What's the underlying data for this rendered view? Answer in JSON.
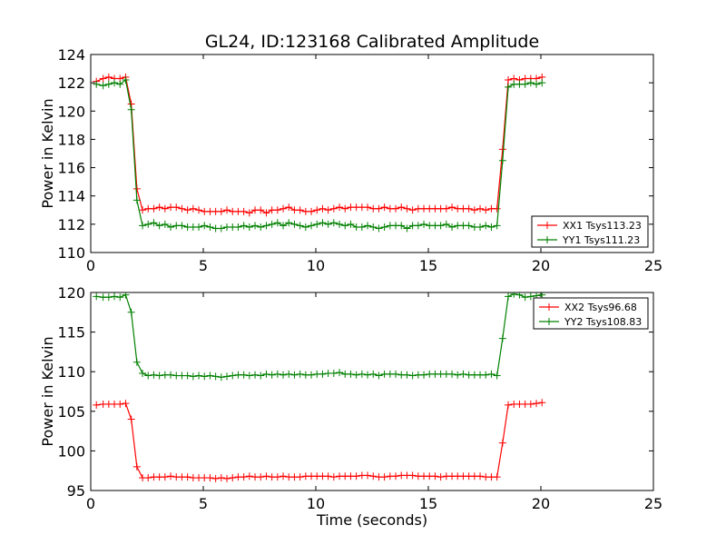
{
  "chart_data": {
    "type": "line",
    "title": "GL24, ID:123168 Calibrated Amplitude",
    "xlabel": "Time (seconds)",
    "panels": [
      {
        "id": "top",
        "ylabel": "Power in Kelvin",
        "xlim": [
          0,
          25
        ],
        "ylim": [
          110,
          124
        ],
        "xticks": [
          0,
          5,
          10,
          15,
          20,
          25
        ],
        "yticks": [
          110,
          112,
          114,
          116,
          118,
          120,
          122,
          124
        ],
        "legend_position": "lower-right",
        "series": [
          {
            "name": "XX1 Tsys113.23",
            "color": "#ff0000",
            "x": [
              0.25,
              0.55,
              0.8,
              1.05,
              1.3,
              1.55,
              1.8,
              2.05,
              2.3,
              2.55,
              2.8,
              3.05,
              3.3,
              3.55,
              3.8,
              4.05,
              4.3,
              4.55,
              4.8,
              5.05,
              5.3,
              5.55,
              5.8,
              6.05,
              6.3,
              6.55,
              6.8,
              7.05,
              7.3,
              7.55,
              7.8,
              8.05,
              8.3,
              8.55,
              8.8,
              9.05,
              9.3,
              9.55,
              9.8,
              10.05,
              10.3,
              10.55,
              10.8,
              11.05,
              11.3,
              11.55,
              11.8,
              12.05,
              12.3,
              12.55,
              12.8,
              13.05,
              13.3,
              13.55,
              13.8,
              14.05,
              14.3,
              14.55,
              14.8,
              15.05,
              15.3,
              15.55,
              15.8,
              16.05,
              16.3,
              16.55,
              16.8,
              17.05,
              17.3,
              17.55,
              17.8,
              18.05,
              18.3,
              18.55,
              18.8,
              19.05,
              19.3,
              19.55,
              19.8,
              20.05
            ],
            "values": [
              122.1,
              122.3,
              122.4,
              122.3,
              122.3,
              122.4,
              120.5,
              114.5,
              113.0,
              113.1,
              113.1,
              113.2,
              113.1,
              113.2,
              113.2,
              113.1,
              113.0,
              113.1,
              113.0,
              112.9,
              112.9,
              112.9,
              112.9,
              113.0,
              112.9,
              112.9,
              112.9,
              112.8,
              113.0,
              113.0,
              112.8,
              113.0,
              113.0,
              113.1,
              113.2,
              113.0,
              113.0,
              112.9,
              112.9,
              113.0,
              113.1,
              113.0,
              113.1,
              113.2,
              113.1,
              113.2,
              113.2,
              113.2,
              113.2,
              113.1,
              113.1,
              113.2,
              113.1,
              113.1,
              113.2,
              113.1,
              113.0,
              113.1,
              113.1,
              113.1,
              113.1,
              113.1,
              113.1,
              113.2,
              113.1,
              113.1,
              113.1,
              113.0,
              113.1,
              113.0,
              113.1,
              113.1,
              117.3,
              122.2,
              122.3,
              122.2,
              122.3,
              122.3,
              122.3,
              122.4
            ]
          },
          {
            "name": "YY1 Tsys111.23",
            "color": "#008000",
            "x": [
              0.25,
              0.55,
              0.8,
              1.05,
              1.3,
              1.55,
              1.8,
              2.05,
              2.3,
              2.55,
              2.8,
              3.05,
              3.3,
              3.55,
              3.8,
              4.05,
              4.3,
              4.55,
              4.8,
              5.05,
              5.3,
              5.55,
              5.8,
              6.05,
              6.3,
              6.55,
              6.8,
              7.05,
              7.3,
              7.55,
              7.8,
              8.05,
              8.3,
              8.55,
              8.8,
              9.05,
              9.3,
              9.55,
              9.8,
              10.05,
              10.3,
              10.55,
              10.8,
              11.05,
              11.3,
              11.55,
              11.8,
              12.05,
              12.3,
              12.55,
              12.8,
              13.05,
              13.3,
              13.55,
              13.8,
              14.05,
              14.3,
              14.55,
              14.8,
              15.05,
              15.3,
              15.55,
              15.8,
              16.05,
              16.3,
              16.55,
              16.8,
              17.05,
              17.3,
              17.55,
              17.8,
              18.05,
              18.3,
              18.55,
              18.8,
              19.05,
              19.3,
              19.55,
              19.8,
              20.05
            ],
            "values": [
              121.9,
              121.8,
              121.9,
              122.0,
              121.9,
              122.2,
              120.1,
              113.7,
              111.9,
              112.0,
              112.1,
              111.9,
              112.0,
              111.8,
              111.9,
              111.9,
              111.8,
              111.8,
              111.8,
              111.9,
              111.8,
              111.7,
              111.7,
              111.8,
              111.8,
              111.8,
              111.9,
              111.8,
              111.9,
              111.8,
              111.9,
              112.0,
              112.1,
              111.9,
              112.1,
              112.0,
              111.9,
              111.8,
              111.9,
              112.0,
              112.1,
              112.0,
              112.1,
              112.0,
              111.9,
              112.0,
              111.8,
              111.8,
              111.9,
              111.8,
              111.7,
              111.8,
              111.9,
              111.9,
              111.9,
              111.7,
              111.9,
              111.9,
              112.0,
              111.9,
              111.9,
              111.9,
              112.0,
              111.8,
              111.9,
              111.9,
              111.9,
              111.8,
              111.8,
              111.9,
              111.8,
              111.9,
              116.5,
              121.7,
              121.9,
              121.9,
              121.9,
              122.0,
              121.9,
              122.0
            ]
          }
        ]
      },
      {
        "id": "bottom",
        "ylabel": "Power in Kelvin",
        "xlim": [
          0,
          25
        ],
        "ylim": [
          95,
          120
        ],
        "xticks": [
          0,
          5,
          10,
          15,
          20,
          25
        ],
        "yticks": [
          95,
          100,
          105,
          110,
          115,
          120
        ],
        "legend_position": "upper-right",
        "series": [
          {
            "name": "XX2 Tsys96.68",
            "color": "#ff0000",
            "x": [
              0.25,
              0.55,
              0.8,
              1.05,
              1.3,
              1.55,
              1.8,
              2.05,
              2.3,
              2.55,
              2.8,
              3.05,
              3.3,
              3.55,
              3.8,
              4.05,
              4.3,
              4.55,
              4.8,
              5.05,
              5.3,
              5.55,
              5.8,
              6.05,
              6.3,
              6.55,
              6.8,
              7.05,
              7.3,
              7.55,
              7.8,
              8.05,
              8.3,
              8.55,
              8.8,
              9.05,
              9.3,
              9.55,
              9.8,
              10.05,
              10.3,
              10.55,
              10.8,
              11.05,
              11.3,
              11.55,
              11.8,
              12.05,
              12.3,
              12.55,
              12.8,
              13.05,
              13.3,
              13.55,
              13.8,
              14.05,
              14.3,
              14.55,
              14.8,
              15.05,
              15.3,
              15.55,
              15.8,
              16.05,
              16.3,
              16.55,
              16.8,
              17.05,
              17.3,
              17.55,
              17.8,
              18.05,
              18.3,
              18.55,
              18.8,
              19.05,
              19.3,
              19.55,
              19.8,
              20.05
            ],
            "values": [
              105.8,
              105.9,
              105.9,
              105.9,
              105.9,
              106.0,
              104.0,
              98.0,
              96.6,
              96.6,
              96.7,
              96.7,
              96.7,
              96.8,
              96.7,
              96.7,
              96.7,
              96.6,
              96.6,
              96.6,
              96.6,
              96.5,
              96.6,
              96.5,
              96.6,
              96.7,
              96.7,
              96.8,
              96.7,
              96.7,
              96.8,
              96.7,
              96.7,
              96.8,
              96.7,
              96.7,
              96.7,
              96.8,
              96.8,
              96.8,
              96.8,
              96.8,
              96.7,
              96.8,
              96.8,
              96.8,
              96.8,
              96.9,
              96.9,
              96.8,
              96.7,
              96.7,
              96.8,
              96.8,
              96.9,
              96.9,
              96.9,
              96.8,
              96.8,
              96.8,
              96.8,
              96.7,
              96.8,
              96.8,
              96.8,
              96.8,
              96.8,
              96.8,
              96.8,
              96.7,
              96.7,
              96.7,
              101.0,
              105.8,
              105.9,
              105.9,
              105.9,
              105.9,
              106.0,
              106.1
            ]
          },
          {
            "name": "YY2 Tsys108.83",
            "color": "#008000",
            "x": [
              0.25,
              0.55,
              0.8,
              1.05,
              1.3,
              1.55,
              1.8,
              2.05,
              2.3,
              2.55,
              2.8,
              3.05,
              3.3,
              3.55,
              3.8,
              4.05,
              4.3,
              4.55,
              4.8,
              5.05,
              5.3,
              5.55,
              5.8,
              6.05,
              6.3,
              6.55,
              6.8,
              7.05,
              7.3,
              7.55,
              7.8,
              8.05,
              8.3,
              8.55,
              8.8,
              9.05,
              9.3,
              9.55,
              9.8,
              10.05,
              10.3,
              10.55,
              10.8,
              11.05,
              11.3,
              11.55,
              11.8,
              12.05,
              12.3,
              12.55,
              12.8,
              13.05,
              13.3,
              13.55,
              13.8,
              14.05,
              14.3,
              14.55,
              14.8,
              15.05,
              15.3,
              15.55,
              15.8,
              16.05,
              16.3,
              16.55,
              16.8,
              17.05,
              17.3,
              17.55,
              17.8,
              18.05,
              18.3,
              18.55,
              18.8,
              19.05,
              19.3,
              19.55,
              19.8,
              20.05
            ],
            "values": [
              119.5,
              119.4,
              119.4,
              119.5,
              119.4,
              119.7,
              117.5,
              111.2,
              109.8,
              109.5,
              109.6,
              109.5,
              109.6,
              109.6,
              109.5,
              109.5,
              109.5,
              109.4,
              109.5,
              109.4,
              109.5,
              109.4,
              109.3,
              109.4,
              109.5,
              109.6,
              109.6,
              109.5,
              109.6,
              109.5,
              109.7,
              109.6,
              109.7,
              109.6,
              109.7,
              109.6,
              109.7,
              109.6,
              109.6,
              109.7,
              109.7,
              109.8,
              109.8,
              109.9,
              109.7,
              109.7,
              109.6,
              109.7,
              109.6,
              109.7,
              109.5,
              109.7,
              109.7,
              109.7,
              109.6,
              109.6,
              109.5,
              109.6,
              109.6,
              109.7,
              109.7,
              109.7,
              109.7,
              109.7,
              109.6,
              109.7,
              109.6,
              109.6,
              109.6,
              109.6,
              109.7,
              109.5,
              114.2,
              119.5,
              119.8,
              119.7,
              119.4,
              119.5,
              119.6,
              119.7
            ]
          }
        ]
      }
    ]
  }
}
